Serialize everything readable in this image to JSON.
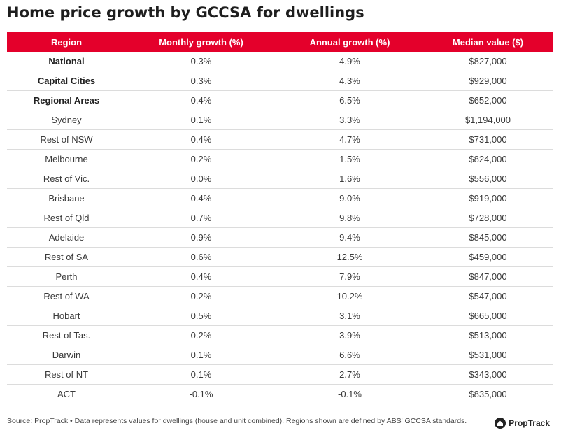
{
  "title": "Home price growth by GCCSA for dwellings",
  "footer": {
    "source": "Source: PropTrack • Data represents values for dwellings (house and unit combined). Regions shown are defined by ABS' GCCSA standards.",
    "logo_text": "PropTrack"
  },
  "colors": {
    "header_bg": "#e4002b",
    "header_text": "#ffffff",
    "row_divider": "#dcdcdc"
  },
  "chart_data": {
    "type": "table",
    "title": "Home price growth by GCCSA for dwellings",
    "columns": [
      "Region",
      "Monthly growth (%)",
      "Annual growth (%)",
      "Median value ($)"
    ],
    "rows": [
      {
        "region": "National",
        "monthly": "0.3%",
        "annual": "4.9%",
        "median": "$827,000",
        "bold": true
      },
      {
        "region": "Capital Cities",
        "monthly": "0.3%",
        "annual": "4.3%",
        "median": "$929,000",
        "bold": true
      },
      {
        "region": "Regional Areas",
        "monthly": "0.4%",
        "annual": "6.5%",
        "median": "$652,000",
        "bold": true
      },
      {
        "region": "Sydney",
        "monthly": "0.1%",
        "annual": "3.3%",
        "median": "$1,194,000"
      },
      {
        "region": "Rest of NSW",
        "monthly": "0.4%",
        "annual": "4.7%",
        "median": "$731,000"
      },
      {
        "region": "Melbourne",
        "monthly": "0.2%",
        "annual": "1.5%",
        "median": "$824,000"
      },
      {
        "region": "Rest of Vic.",
        "monthly": "0.0%",
        "annual": "1.6%",
        "median": "$556,000"
      },
      {
        "region": "Brisbane",
        "monthly": "0.4%",
        "annual": "9.0%",
        "median": "$919,000"
      },
      {
        "region": "Rest of Qld",
        "monthly": "0.7%",
        "annual": "9.8%",
        "median": "$728,000"
      },
      {
        "region": "Adelaide",
        "monthly": "0.9%",
        "annual": "9.4%",
        "median": "$845,000"
      },
      {
        "region": "Rest of SA",
        "monthly": "0.6%",
        "annual": "12.5%",
        "median": "$459,000"
      },
      {
        "region": "Perth",
        "monthly": "0.4%",
        "annual": "7.9%",
        "median": "$847,000"
      },
      {
        "region": "Rest of WA",
        "monthly": "0.2%",
        "annual": "10.2%",
        "median": "$547,000"
      },
      {
        "region": "Hobart",
        "monthly": "0.5%",
        "annual": "3.1%",
        "median": "$665,000"
      },
      {
        "region": "Rest of Tas.",
        "monthly": "0.2%",
        "annual": "3.9%",
        "median": "$513,000"
      },
      {
        "region": "Darwin",
        "monthly": "0.1%",
        "annual": "6.6%",
        "median": "$531,000"
      },
      {
        "region": "Rest of NT",
        "monthly": "0.1%",
        "annual": "2.7%",
        "median": "$343,000"
      },
      {
        "region": "ACT",
        "monthly": "-0.1%",
        "annual": "-0.1%",
        "median": "$835,000"
      }
    ]
  }
}
